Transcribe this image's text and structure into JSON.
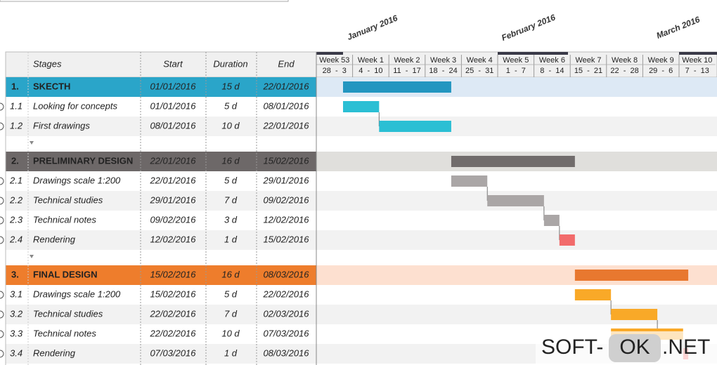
{
  "header": {
    "months": [
      "January 2016",
      "February 2016",
      "March 2016"
    ],
    "columns": [
      "Stages",
      "Start",
      "Duration",
      "End"
    ],
    "weeks": [
      {
        "label": "Week 53",
        "days": "28  -  3"
      },
      {
        "label": "Week 1",
        "days": "4  -  10"
      },
      {
        "label": "Week 2",
        "days": "11  -  17"
      },
      {
        "label": "Week 3",
        "days": "18  -  24"
      },
      {
        "label": "Week 4",
        "days": "25  -  31"
      },
      {
        "label": "Week 5",
        "days": "1  -  7"
      },
      {
        "label": "Week 6",
        "days": "8  -  14"
      },
      {
        "label": "Week 7",
        "days": "15  -  21"
      },
      {
        "label": "Week 8",
        "days": "22  -  28"
      },
      {
        "label": "Week 9",
        "days": "29  -  6"
      },
      {
        "label": "Week 10",
        "days": "7  -  13"
      }
    ]
  },
  "stages": [
    {
      "number": "1.",
      "name": "SKECTH",
      "start": "01/01/2016",
      "duration": "15 d",
      "end": "22/01/2016",
      "color": "#2aa5c9",
      "band": "#dde9f5",
      "bar": "#2396c0",
      "tasks": [
        {
          "number": "1.1",
          "name": "Looking for concepts",
          "start": "01/01/2016",
          "duration": "5 d",
          "end": "08/01/2016",
          "color": "#2bbfd4"
        },
        {
          "number": "1.2",
          "name": "First drawings",
          "start": "08/01/2016",
          "duration": "10 d",
          "end": "22/01/2016",
          "color": "#2bbfd4"
        }
      ]
    },
    {
      "number": "2.",
      "name": "PRELIMINARY DESIGN",
      "start": "22/01/2016",
      "duration": "16 d",
      "end": "15/02/2016",
      "color": "#6d6868",
      "band": "#e0dfdc",
      "bar": "#716c6c",
      "tasks": [
        {
          "number": "2.1",
          "name": "Drawings scale 1:200",
          "start": "22/01/2016",
          "duration": "5 d",
          "end": "29/01/2016",
          "color": "#aaa6a6"
        },
        {
          "number": "2.2",
          "name": "Technical studies",
          "start": "29/01/2016",
          "duration": "7 d",
          "end": "09/02/2016",
          "color": "#aaa6a6"
        },
        {
          "number": "2.3",
          "name": "Technical notes",
          "start": "09/02/2016",
          "duration": "3 d",
          "end": "12/02/2016",
          "color": "#aaa6a6"
        },
        {
          "number": "2.4",
          "name": "Rendering",
          "start": "12/02/2016",
          "duration": "1 d",
          "end": "15/02/2016",
          "color": "#f26b6b"
        }
      ]
    },
    {
      "number": "3.",
      "name": "FINAL DESIGN",
      "start": "15/02/2016",
      "duration": "16 d",
      "end": "08/03/2016",
      "color": "#ee7d2c",
      "band": "#fde0d0",
      "bar": "#e8782f",
      "tasks": [
        {
          "number": "3.1",
          "name": "Drawings scale 1:200",
          "start": "15/02/2016",
          "duration": "5 d",
          "end": "22/02/2016",
          "color": "#f9a928"
        },
        {
          "number": "3.2",
          "name": "Technical studies",
          "start": "22/02/2016",
          "duration": "7 d",
          "end": "02/03/2016",
          "color": "#f9a928"
        },
        {
          "number": "3.3",
          "name": "Technical notes",
          "start": "22/02/2016",
          "duration": "10 d",
          "end": "07/03/2016",
          "color": "#f9a928"
        },
        {
          "number": "3.4",
          "name": "Rendering",
          "start": "07/03/2016",
          "duration": "1 d",
          "end": "08/03/2016",
          "color": "#f26b6b"
        }
      ]
    }
  ],
  "watermark": {
    "left": "SOFT-",
    "mid": "OK",
    "right": ".NET"
  }
}
